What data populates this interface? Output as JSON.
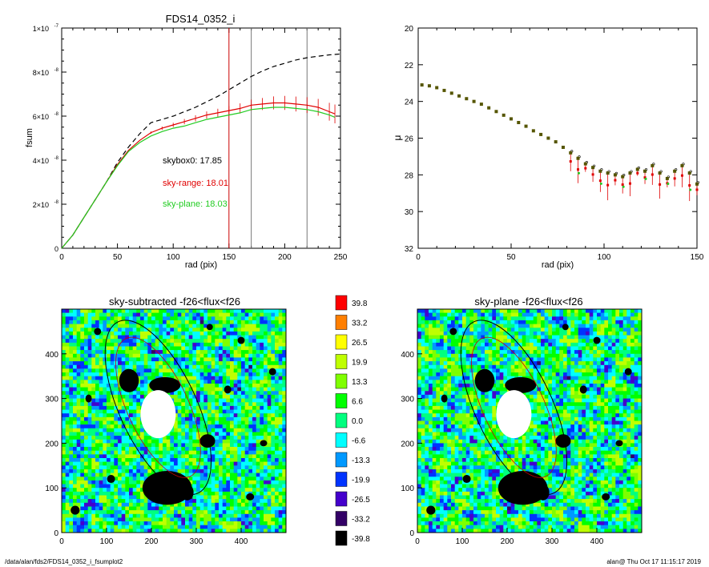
{
  "figure": {
    "footer_left": "/data/alan/fds2/FDS14_0352_i_fsumplot2",
    "footer_right": "alan@  Thu Oct 17 11:15:17 2019"
  },
  "colors": {
    "grid_black": "#000000",
    "sky_range": "#e00000",
    "sky_plane": "#22cc22",
    "vline_red": "#cc0000",
    "vline_gray": "#777777",
    "dashed": "#000000"
  },
  "chart_data": [
    {
      "id": "fsum",
      "type": "line",
      "title": "FDS14_0352_i",
      "xlabel": "rad (pix)",
      "ylabel": "fsum",
      "xlim": [
        0,
        250
      ],
      "ylim": [
        0,
        1e-07
      ],
      "xticks": [
        "0",
        "50",
        "100",
        "150",
        "200",
        "250"
      ],
      "yticks": [
        {
          "base": "0",
          "exp": ""
        },
        {
          "base": "2×10",
          "exp": "-8"
        },
        {
          "base": "4×10",
          "exp": "-8"
        },
        {
          "base": "6×10",
          "exp": "-8"
        },
        {
          "base": "8×10",
          "exp": "-8"
        },
        {
          "base": "1×10",
          "exp": "-7"
        }
      ],
      "annotations": [
        {
          "text": "skybox0: 17.85",
          "color": "#000000"
        },
        {
          "text": "sky-range: 18.01",
          "color": "#e00000"
        },
        {
          "text": "sky-plane: 18.03",
          "color": "#22cc22"
        }
      ],
      "vlines": [
        {
          "x": 150,
          "color": "#cc0000"
        },
        {
          "x": 170,
          "color": "#777777"
        },
        {
          "x": 220,
          "color": "#777777"
        }
      ],
      "series": [
        {
          "style": "dashed",
          "color": "#000000",
          "x": [
            0,
            10,
            20,
            30,
            40,
            50,
            60,
            70,
            80,
            90,
            100,
            110,
            120,
            130,
            140,
            150,
            160,
            170,
            180,
            190,
            200,
            210,
            220,
            230,
            240,
            250
          ],
          "y": [
            0,
            6e-09,
            1.4e-08,
            2.2e-08,
            3e-08,
            3.9e-08,
            4.6e-08,
            5.2e-08,
            5.7e-08,
            5.85e-08,
            6e-08,
            6.2e-08,
            6.4e-08,
            6.65e-08,
            6.9e-08,
            7.2e-08,
            7.5e-08,
            7.8e-08,
            8.05e-08,
            8.25e-08,
            8.4e-08,
            8.55e-08,
            8.65e-08,
            8.72e-08,
            8.78e-08,
            8.82e-08
          ]
        },
        {
          "style": "solid",
          "color": "#e00000",
          "x": [
            0,
            10,
            20,
            30,
            40,
            50,
            60,
            70,
            80,
            90,
            100,
            110,
            120,
            130,
            140,
            150,
            160,
            170,
            180,
            190,
            200,
            210,
            220,
            230,
            240,
            245
          ],
          "y": [
            0,
            6e-09,
            1.4e-08,
            2.2e-08,
            3e-08,
            3.8e-08,
            4.45e-08,
            4.9e-08,
            5.25e-08,
            5.45e-08,
            5.6e-08,
            5.75e-08,
            5.9e-08,
            6.05e-08,
            6.15e-08,
            6.25e-08,
            6.35e-08,
            6.5e-08,
            6.55e-08,
            6.6e-08,
            6.6e-08,
            6.55e-08,
            6.5e-08,
            6.4e-08,
            6.2e-08,
            6.1e-08
          ]
        },
        {
          "style": "solid",
          "color": "#22cc22",
          "x": [
            0,
            10,
            20,
            30,
            40,
            50,
            60,
            70,
            80,
            90,
            100,
            110,
            120,
            130,
            140,
            150,
            160,
            170,
            180,
            190,
            200,
            210,
            220,
            230,
            240,
            245
          ],
          "y": [
            0,
            6e-09,
            1.4e-08,
            2.2e-08,
            3e-08,
            3.75e-08,
            4.4e-08,
            4.8e-08,
            5.1e-08,
            5.3e-08,
            5.45e-08,
            5.55e-08,
            5.7e-08,
            5.85e-08,
            5.95e-08,
            6.05e-08,
            6.15e-08,
            6.3e-08,
            6.35e-08,
            6.4e-08,
            6.4e-08,
            6.35e-08,
            6.3e-08,
            6.2e-08,
            6.05e-08,
            5.95e-08
          ]
        }
      ]
    },
    {
      "id": "mu",
      "type": "scatter",
      "title": "",
      "xlabel": "rad (pix)",
      "ylabel": "μ",
      "xlim": [
        0,
        150
      ],
      "ylim": [
        32,
        20
      ],
      "xticks": [
        "0",
        "50",
        "100",
        "150"
      ],
      "yticks": [
        "20",
        "22",
        "24",
        "26",
        "28",
        "30",
        "32"
      ],
      "series": [
        {
          "color": "#555500",
          "x": [
            2,
            6,
            10,
            14,
            18,
            22,
            26,
            30,
            34,
            38,
            42,
            46,
            50,
            54,
            58,
            62,
            66,
            70,
            74,
            78,
            82,
            86,
            90,
            94,
            98,
            102,
            106,
            110,
            114,
            118,
            122,
            126,
            130,
            134,
            138,
            142,
            146,
            150
          ],
          "y": [
            23.1,
            23.15,
            23.25,
            23.4,
            23.55,
            23.7,
            23.85,
            24.0,
            24.15,
            24.35,
            24.55,
            24.75,
            24.95,
            25.15,
            25.35,
            25.6,
            25.8,
            26.0,
            26.2,
            26.5,
            26.8,
            27.1,
            27.4,
            27.6,
            27.8,
            27.9,
            28.0,
            28.1,
            27.9,
            27.7,
            27.8,
            27.5,
            27.9,
            28.2,
            27.8,
            27.5,
            27.9,
            28.5
          ]
        }
      ]
    },
    {
      "id": "sky-subtracted",
      "type": "heatmap",
      "title": "sky-subtracted -f26<flux<f26",
      "xticks": [
        "0",
        "100",
        "200",
        "300",
        "400"
      ],
      "yticks": [
        "0",
        "100",
        "200",
        "300",
        "400"
      ],
      "xlim": [
        0,
        500
      ],
      "ylim": [
        0,
        500
      ]
    },
    {
      "id": "sky-plane",
      "type": "heatmap",
      "title": "sky-plane -f26<flux<f26",
      "xticks": [
        "0",
        "100",
        "200",
        "300",
        "400"
      ],
      "yticks": [
        "0",
        "100",
        "200",
        "300",
        "400"
      ],
      "xlim": [
        0,
        500
      ],
      "ylim": [
        0,
        500
      ]
    }
  ],
  "colorbar": {
    "levels": [
      {
        "label": "39.8",
        "color": "#ff0000"
      },
      {
        "label": "33.2",
        "color": "#ff7f00"
      },
      {
        "label": "26.5",
        "color": "#ffff00"
      },
      {
        "label": "19.9",
        "color": "#bfff00"
      },
      {
        "label": "13.3",
        "color": "#7fff00"
      },
      {
        "label": "6.6",
        "color": "#00ff00"
      },
      {
        "label": "0.0",
        "color": "#00ff7f"
      },
      {
        "label": "-6.6",
        "color": "#00ffff"
      },
      {
        "label": "-13.3",
        "color": "#0099ff"
      },
      {
        "label": "-19.9",
        "color": "#0033ff"
      },
      {
        "label": "-26.5",
        "color": "#4400cc"
      },
      {
        "label": "-33.2",
        "color": "#330066"
      },
      {
        "label": "-39.8",
        "color": "#000000"
      }
    ]
  }
}
